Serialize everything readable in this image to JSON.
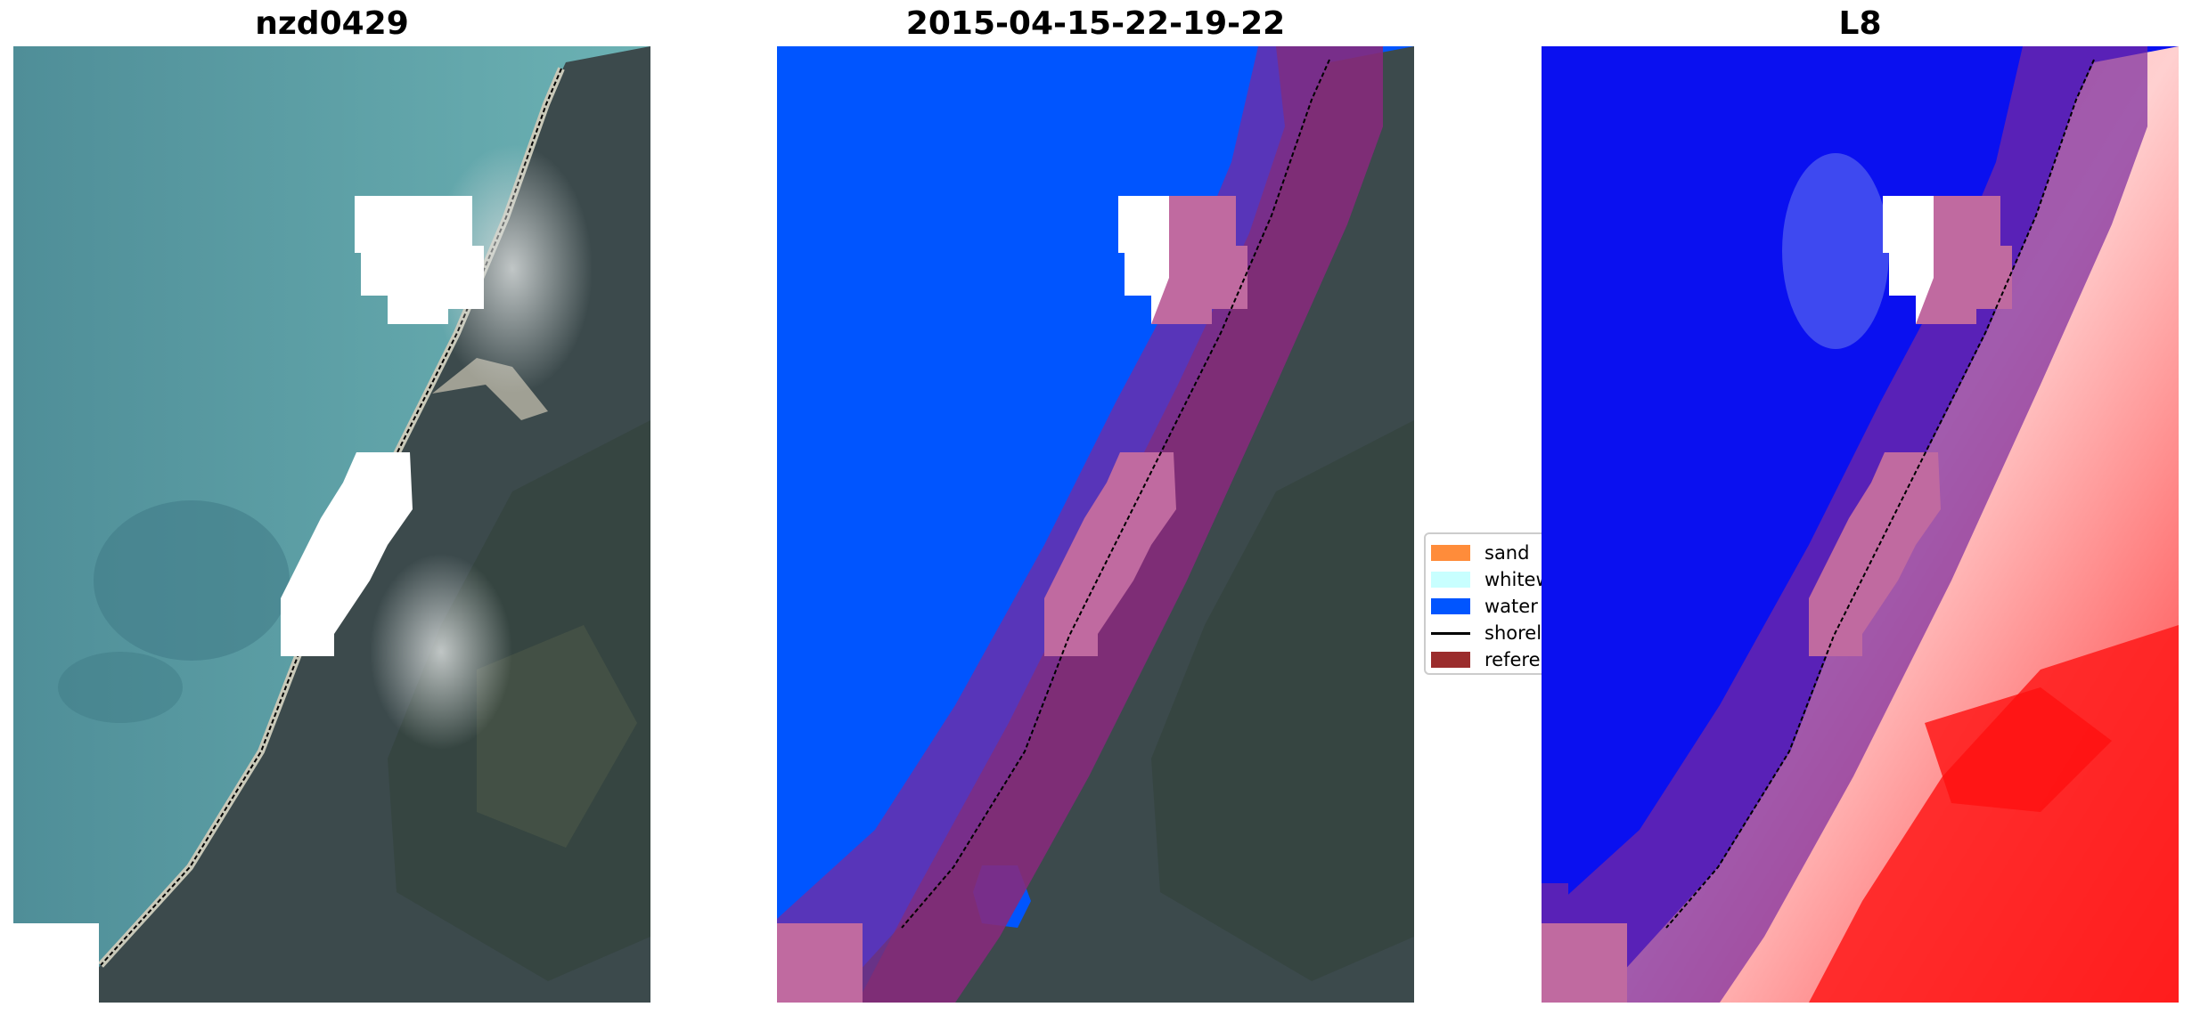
{
  "panels": [
    {
      "title": "nzd0429"
    },
    {
      "title": "2015-04-15-22-19-22"
    },
    {
      "title": "L8"
    }
  ],
  "legend": {
    "items": [
      {
        "label": "sand",
        "color": "#ff8c3a",
        "kind": "patch"
      },
      {
        "label": "whitewater",
        "color": "#c8ffff",
        "kind": "patch"
      },
      {
        "label": "water",
        "color": "#0055ff",
        "kind": "patch"
      },
      {
        "label": "shoreline",
        "color": "#000000",
        "kind": "line"
      },
      {
        "label": "reference",
        "color": "#9b2d2d",
        "kind": "patch"
      }
    ]
  },
  "colors": {
    "ocean": "#5c9ea6",
    "shallow": "#6fb3b6",
    "land": "#3e4a4e",
    "classified_water": "#0055ff",
    "index_water": "#0a10f0",
    "index_land": "#ff2a2a",
    "buffer": "#7a2a9e",
    "cloud_mask": "#ffffff"
  }
}
